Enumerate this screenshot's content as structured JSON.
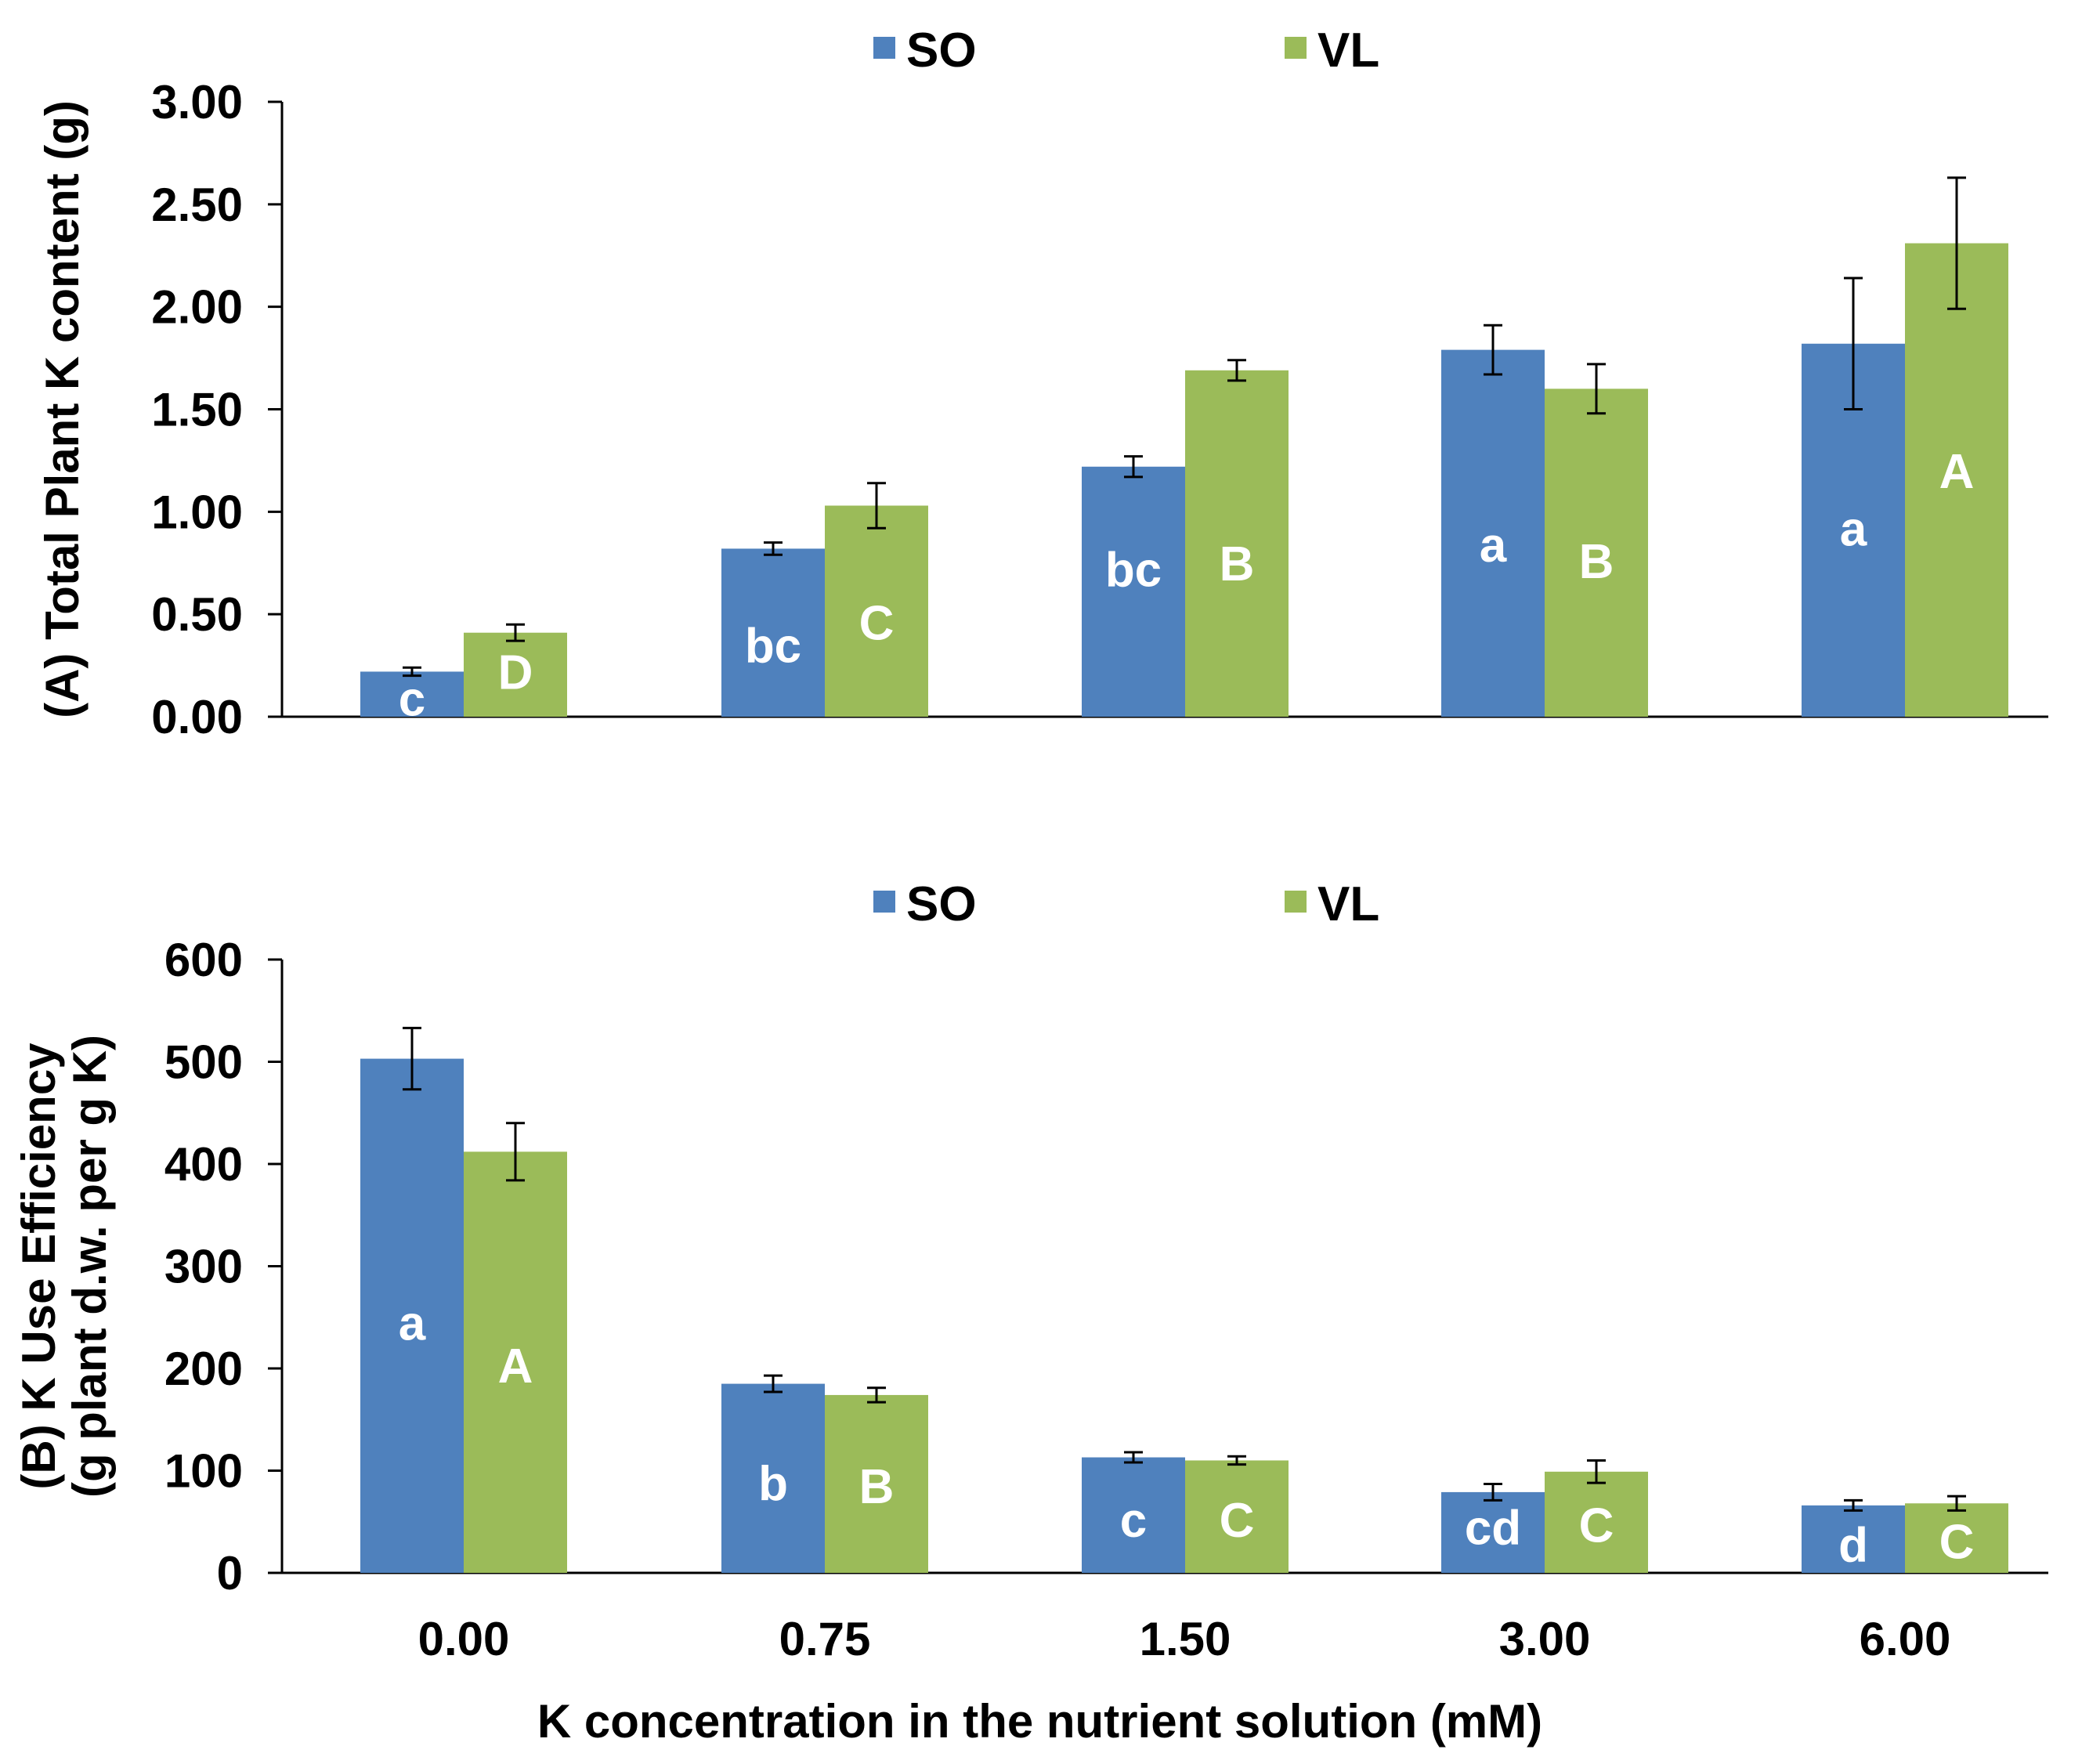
{
  "chart_data": [
    {
      "type": "bar",
      "panel": "A",
      "categories": [
        "0.00",
        "0.75",
        "1.50",
        "3.00",
        "6.00"
      ],
      "ylabel": "(A) Total Plant K content (g)",
      "ylim": [
        0,
        3
      ],
      "yticks": [
        "0.00",
        "0.50",
        "1.00",
        "1.50",
        "2.00",
        "2.50",
        "3.00"
      ],
      "ytick_values": [
        0,
        0.5,
        1,
        1.5,
        2,
        2.5,
        3
      ],
      "legend": [
        "SO",
        "VL"
      ],
      "legend_position": "top-center",
      "series": [
        {
          "name": "SO",
          "color": "#4f81bd",
          "values": [
            0.22,
            0.82,
            1.22,
            1.79,
            1.82
          ],
          "errors": [
            0.02,
            0.03,
            0.05,
            0.12,
            0.32
          ],
          "labels": [
            "c",
            "bc",
            "bc",
            "a",
            "a"
          ],
          "label_values": [
            0.09,
            0.35,
            0.72,
            0.84,
            0.92
          ]
        },
        {
          "name": "VL",
          "color": "#9bbb59",
          "values": [
            0.41,
            1.03,
            1.69,
            1.6,
            2.31
          ],
          "errors": [
            0.04,
            0.11,
            0.05,
            0.12,
            0.32
          ],
          "labels": [
            "D",
            "C",
            "B",
            "B",
            "A"
          ],
          "label_values": [
            0.22,
            0.46,
            0.75,
            0.76,
            1.2
          ]
        }
      ]
    },
    {
      "type": "bar",
      "panel": "B",
      "categories": [
        "0.00",
        "0.75",
        "1.50",
        "3.00",
        "6.00"
      ],
      "xlabel": "K concentration in the nutrient solution (mM)",
      "ylabel": [
        "(B) K Use Efficiency",
        "(g plant d.w. per g K)"
      ],
      "ylim": [
        0,
        600
      ],
      "yticks": [
        "0",
        "100",
        "200",
        "300",
        "400",
        "500",
        "600"
      ],
      "ytick_values": [
        0,
        100,
        200,
        300,
        400,
        500,
        600
      ],
      "legend": [
        "SO",
        "VL"
      ],
      "legend_position": "top-center",
      "series": [
        {
          "name": "SO",
          "color": "#4f81bd",
          "values": [
            503,
            185,
            113,
            79,
            66
          ],
          "errors": [
            30,
            8,
            5,
            8,
            5
          ],
          "labels": [
            "a",
            "b",
            "c",
            "cd",
            "d"
          ],
          "label_values": [
            245,
            88,
            52,
            45,
            28
          ]
        },
        {
          "name": "VL",
          "color": "#9bbb59",
          "values": [
            412,
            174,
            110,
            99,
            68
          ],
          "errors": [
            28,
            7,
            4,
            11,
            7
          ],
          "labels": [
            "A",
            "B",
            "C",
            "C",
            "C"
          ],
          "label_values": [
            203,
            85,
            52,
            47,
            31
          ]
        }
      ]
    }
  ]
}
